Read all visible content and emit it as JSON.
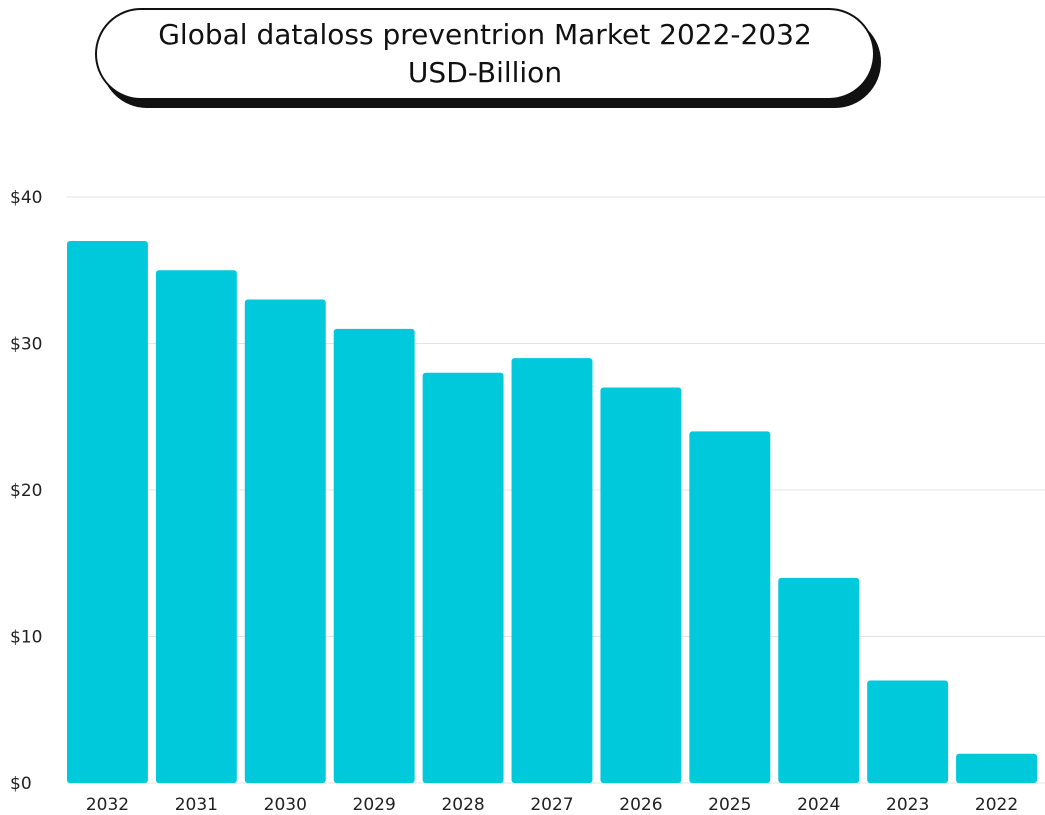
{
  "title": "Global dataloss preventrion Market 2022-2032 USD-Billion",
  "colors": {
    "bar": "#00C9DC",
    "grid": "#E3E3E3",
    "text": "#222222"
  },
  "chart_data": {
    "type": "bar",
    "title": "Global dataloss preventrion Market 2022-2032 USD-Billion",
    "categories": [
      "2032",
      "2031",
      "2030",
      "2029",
      "2028",
      "2027",
      "2026",
      "2025",
      "2024",
      "2023",
      "2022"
    ],
    "values": [
      37,
      35,
      33,
      31,
      28,
      29,
      27,
      24,
      14,
      7,
      2
    ],
    "ylim": [
      0,
      40
    ],
    "yticks": [
      0,
      10,
      20,
      30,
      40
    ],
    "ytick_labels": [
      "$0",
      "$10",
      "$20",
      "$30",
      "$40"
    ],
    "xlabel": "",
    "ylabel": "",
    "grid": true,
    "legend": "none"
  }
}
